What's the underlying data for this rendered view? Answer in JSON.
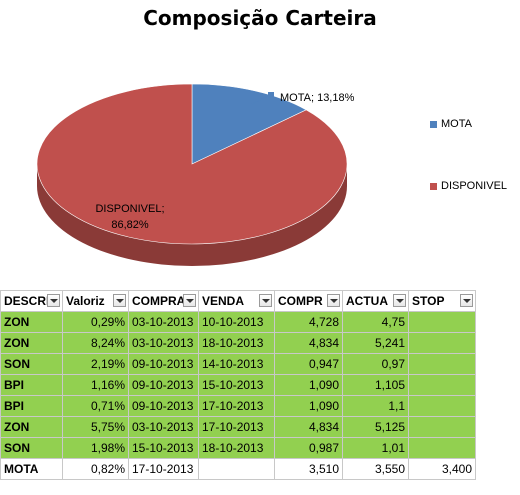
{
  "chart_data": {
    "type": "pie",
    "title": "Composição Carteira",
    "slices": [
      {
        "label": "MOTA",
        "value": 13.18,
        "data_label": "MOTA; 13,18%",
        "color": "#4f81bd"
      },
      {
        "label": "DISPONIVEL",
        "value": 86.82,
        "data_label_line1": "DISPONIVEL;",
        "data_label_line2": "86,82%",
        "color": "#c0504d"
      }
    ],
    "legend": {
      "placement": "right",
      "entries": [
        "MOTA",
        "DISPONIVEL"
      ]
    },
    "three_d": true
  },
  "table": {
    "headers": [
      "DESCRI",
      "Valoriz",
      "COMPRA",
      "VENDA",
      "COMPR",
      "ACTUA",
      "STOP"
    ],
    "rows": [
      {
        "desc": "ZON",
        "valoriz": "0,29%",
        "compra": "03-10-2013",
        "venda": "10-10-2013",
        "compr": "4,728",
        "actua": "4,75",
        "stop": "",
        "highlight": true
      },
      {
        "desc": "ZON",
        "valoriz": "8,24%",
        "compra": "03-10-2013",
        "venda": "18-10-2013",
        "compr": "4,834",
        "actua": "5,241",
        "stop": "",
        "highlight": true
      },
      {
        "desc": "SON",
        "valoriz": "2,19%",
        "compra": "09-10-2013",
        "venda": "14-10-2013",
        "compr": "0,947",
        "actua": "0,97",
        "stop": "",
        "highlight": true
      },
      {
        "desc": "BPI",
        "valoriz": "1,16%",
        "compra": "09-10-2013",
        "venda": "15-10-2013",
        "compr": "1,090",
        "actua": "1,105",
        "stop": "",
        "highlight": true
      },
      {
        "desc": "BPI",
        "valoriz": "0,71%",
        "compra": "09-10-2013",
        "venda": "17-10-2013",
        "compr": "1,090",
        "actua": "1,1",
        "stop": "",
        "highlight": true
      },
      {
        "desc": "ZON",
        "valoriz": "5,75%",
        "compra": "03-10-2013",
        "venda": "17-10-2013",
        "compr": "4,834",
        "actua": "5,125",
        "stop": "",
        "highlight": true
      },
      {
        "desc": "SON",
        "valoriz": "1,98%",
        "compra": "15-10-2013",
        "venda": "18-10-2013",
        "compr": "0,987",
        "actua": "1,01",
        "stop": "",
        "highlight": true
      },
      {
        "desc": "MOTA",
        "valoriz": "0,82%",
        "compra": "17-10-2013",
        "venda": "",
        "compr": "3,510",
        "actua": "3,550",
        "stop": "3,400",
        "highlight": false
      }
    ]
  }
}
